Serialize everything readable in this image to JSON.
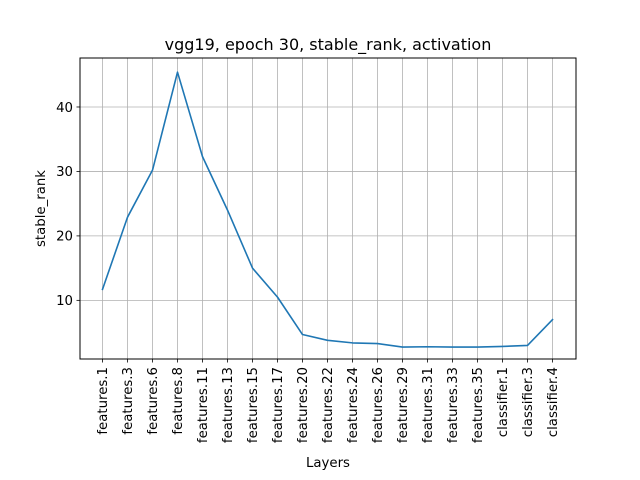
{
  "chart_data": {
    "type": "line",
    "title": "vgg19, epoch 30, stable_rank, activation",
    "xlabel": "Layers",
    "ylabel": "stable_rank",
    "categories": [
      "features.1",
      "features.3",
      "features.6",
      "features.8",
      "features.11",
      "features.13",
      "features.15",
      "features.17",
      "features.20",
      "features.22",
      "features.24",
      "features.26",
      "features.29",
      "features.31",
      "features.33",
      "features.35",
      "classifier.1",
      "classifier.3",
      "classifier.4"
    ],
    "series": [
      {
        "values": [
          11.7,
          22.9,
          30.2,
          45.4,
          32.3,
          24.0,
          15.0,
          10.5,
          4.7,
          3.8,
          3.4,
          3.3,
          2.75,
          2.8,
          2.75,
          2.75,
          2.85,
          3.0,
          7.0
        ],
        "color": "#1f77b4"
      }
    ],
    "yticks": [
      10,
      20,
      30,
      40
    ],
    "ylim": [
      0.9,
      47.6
    ],
    "grid": true,
    "legend": "none"
  }
}
